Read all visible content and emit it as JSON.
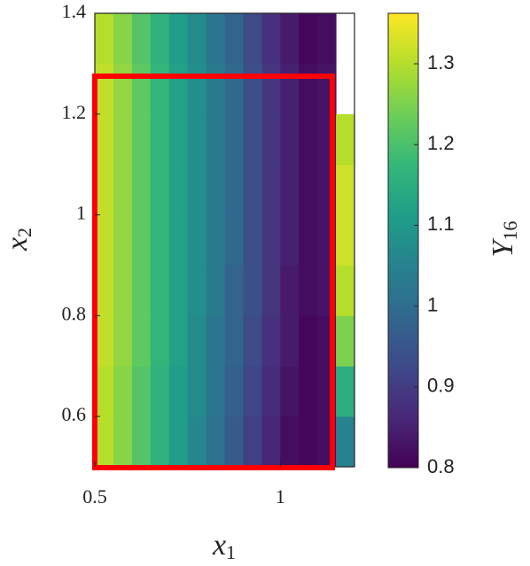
{
  "chart_data": {
    "type": "heatmap",
    "xlabel": {
      "base": "x",
      "sub": "1"
    },
    "ylabel": {
      "base": "x",
      "sub": "2"
    },
    "colorbar_label": {
      "base": "Y",
      "sub": "16"
    },
    "x_edges": [
      0.5,
      0.55,
      0.6,
      0.65,
      0.7,
      0.75,
      0.8,
      0.85,
      0.9,
      0.95,
      1.0,
      1.05,
      1.1,
      1.15,
      1.2
    ],
    "y_edges": [
      0.5,
      0.6,
      0.7,
      0.8,
      0.9,
      1.0,
      1.1,
      1.2,
      1.3,
      1.4
    ],
    "z": [
      [
        1.3,
        1.26,
        1.21,
        1.16,
        1.11,
        1.06,
        1.01,
        0.96,
        0.91,
        0.86,
        0.82,
        0.81,
        0.82,
        1.05
      ],
      [
        1.3,
        1.26,
        1.21,
        1.16,
        1.11,
        1.07,
        1.02,
        0.97,
        0.92,
        0.87,
        0.83,
        0.81,
        0.82,
        1.15
      ],
      [
        1.31,
        1.27,
        1.22,
        1.17,
        1.12,
        1.07,
        1.02,
        0.98,
        0.93,
        0.88,
        0.84,
        0.81,
        0.82,
        1.25
      ],
      [
        1.31,
        1.27,
        1.22,
        1.17,
        1.12,
        1.08,
        1.03,
        0.98,
        0.94,
        0.89,
        0.84,
        0.82,
        0.83,
        1.3
      ],
      [
        1.31,
        1.27,
        1.22,
        1.17,
        1.12,
        1.08,
        1.03,
        0.99,
        0.94,
        0.89,
        0.85,
        0.82,
        0.83,
        1.32
      ],
      [
        1.31,
        1.27,
        1.22,
        1.17,
        1.12,
        1.08,
        1.03,
        0.99,
        0.94,
        0.89,
        0.85,
        0.82,
        0.83,
        1.32
      ],
      [
        1.31,
        1.27,
        1.22,
        1.17,
        1.12,
        1.08,
        1.03,
        0.99,
        0.94,
        0.89,
        0.85,
        0.82,
        0.83,
        1.3
      ],
      [
        1.31,
        1.27,
        1.22,
        1.17,
        1.12,
        1.08,
        1.03,
        0.99,
        0.94,
        0.89,
        0.85,
        0.82,
        0.83,
        null
      ],
      [
        1.3,
        1.26,
        1.21,
        1.16,
        1.11,
        1.07,
        1.02,
        0.98,
        0.93,
        0.88,
        0.84,
        0.81,
        0.82,
        null
      ]
    ],
    "xlim": [
      0.5,
      1.2
    ],
    "xticks": [
      0.5,
      1
    ],
    "ylim": [
      0.5,
      1.4
    ],
    "yticks": [
      0.6,
      0.8,
      1,
      1.2,
      1.4
    ],
    "clim": [
      0.8,
      1.3625
    ],
    "cticks": [
      0.8,
      0.9,
      1,
      1.1,
      1.2,
      1.3
    ],
    "colormap": [
      "#440154",
      "#482878",
      "#3e4989",
      "#31688e",
      "#26828e",
      "#1f9e89",
      "#35b779",
      "#6ece58",
      "#b5de2b",
      "#fde725"
    ]
  }
}
